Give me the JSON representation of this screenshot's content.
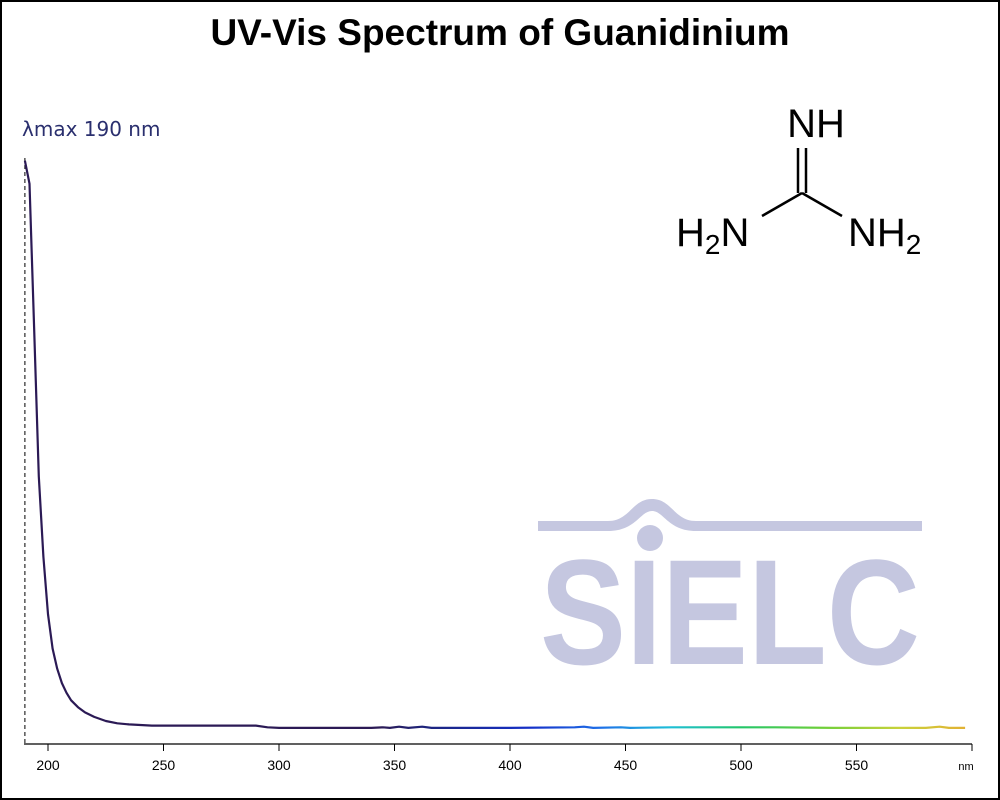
{
  "chart_data": {
    "type": "line",
    "title": "UV-Vis Spectrum of Guanidinium",
    "xlabel": "nm",
    "ylabel": "",
    "xlim": [
      190,
      597
    ],
    "ylim": [
      0,
      1
    ],
    "x_ticks": [
      200,
      250,
      300,
      350,
      400,
      450,
      500,
      550
    ],
    "grid": false,
    "annotation": {
      "text": "λmax  190 nm",
      "x": 190
    },
    "series": [
      {
        "points": [
          [
            190,
            0.99
          ],
          [
            192,
            0.95
          ],
          [
            194,
            0.7
          ],
          [
            196,
            0.44
          ],
          [
            198,
            0.3
          ],
          [
            200,
            0.2
          ],
          [
            202,
            0.14
          ],
          [
            204,
            0.105
          ],
          [
            206,
            0.08
          ],
          [
            208,
            0.063
          ],
          [
            210,
            0.05
          ],
          [
            213,
            0.038
          ],
          [
            216,
            0.029
          ],
          [
            220,
            0.021
          ],
          [
            225,
            0.014
          ],
          [
            230,
            0.01
          ],
          [
            235,
            0.008
          ],
          [
            240,
            0.007
          ],
          [
            245,
            0.006
          ],
          [
            260,
            0.006
          ],
          [
            290,
            0.006
          ],
          [
            295,
            0.003
          ],
          [
            300,
            0.002
          ],
          [
            340,
            0.002
          ],
          [
            345,
            0.003
          ],
          [
            348,
            0.002
          ],
          [
            352,
            0.004
          ],
          [
            356,
            0.002
          ],
          [
            362,
            0.004
          ],
          [
            366,
            0.002
          ],
          [
            400,
            0.002
          ],
          [
            428,
            0.003
          ],
          [
            432,
            0.004
          ],
          [
            436,
            0.002
          ],
          [
            448,
            0.003
          ],
          [
            452,
            0.002
          ],
          [
            470,
            0.003
          ],
          [
            490,
            0.003
          ],
          [
            515,
            0.003
          ],
          [
            540,
            0.002
          ],
          [
            580,
            0.002
          ],
          [
            586,
            0.004
          ],
          [
            590,
            0.002
          ],
          [
            597,
            0.002
          ]
        ]
      }
    ]
  },
  "molecule": {
    "top": "NH",
    "left_main": "H",
    "left_sub": "2",
    "left_end": "N",
    "right_main": "NH",
    "right_sub": "2"
  },
  "watermark": "SIELC",
  "colors": {
    "uv_curve": "#2b1a55",
    "lambda_label": "#2a2f6e",
    "watermark": "#c5c7e0"
  }
}
